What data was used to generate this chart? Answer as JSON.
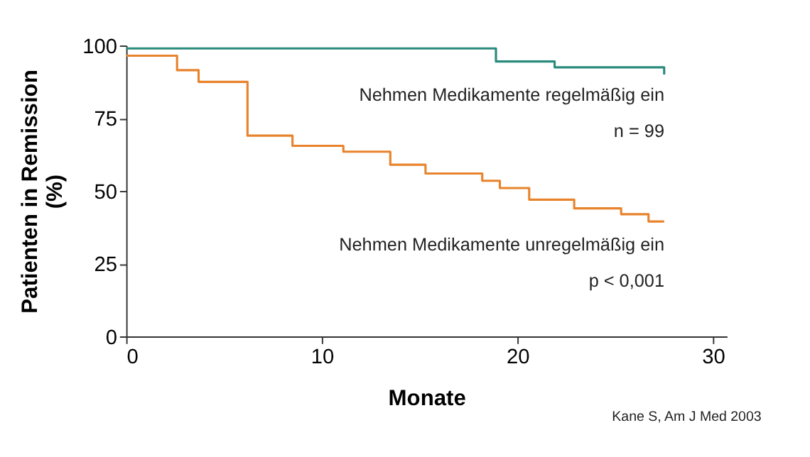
{
  "chart_data": {
    "type": "step",
    "xlabel": "Monate",
    "ylabel": "Patienten in Remission\n(%)",
    "xlim": [
      0,
      30.7
    ],
    "xticks": [
      0,
      10,
      20,
      30
    ],
    "ylim": [
      0,
      100
    ],
    "yticks": [
      0,
      25,
      50,
      75,
      100
    ],
    "grid": false,
    "legend": false,
    "series": [
      {
        "name": "Nehmen Medikamente regelmäßig ein",
        "color": "#2a8a7c",
        "x": [
          0,
          18.9,
          21.9,
          27.5,
          27.5
        ],
        "values": [
          99,
          94.5,
          92.5,
          92.5,
          90
        ]
      },
      {
        "name": "Nehmen Medikamente unregelmäßig ein",
        "color": "#e8832c",
        "x": [
          0,
          2.6,
          3.7,
          6.2,
          8.5,
          11.1,
          13.5,
          15.3,
          18.2,
          19.1,
          20.6,
          22.9,
          25.3,
          26.7,
          27.5
        ],
        "values": [
          96.5,
          91.5,
          87.5,
          69,
          65.5,
          63.5,
          59,
          56,
          53.5,
          51,
          47,
          44,
          42,
          39.5,
          39.5
        ]
      }
    ],
    "annotations": [
      "n = 99",
      "p < 0,001",
      "Kane S, Am J Med 2003"
    ]
  }
}
